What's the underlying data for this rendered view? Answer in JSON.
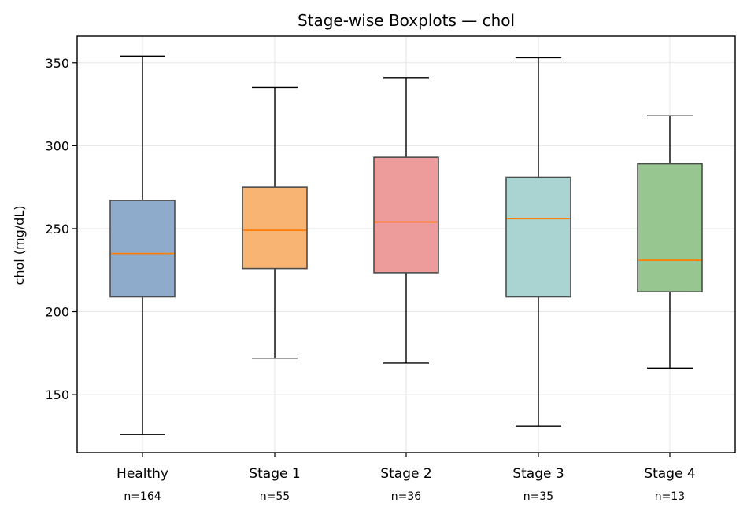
{
  "chart_data": {
    "type": "boxplot",
    "title": "Stage-wise Boxplots — chol",
    "xlabel": "",
    "ylabel": "chol (mg/dL)",
    "ylim": [
      115,
      366
    ],
    "yticks": [
      150,
      200,
      250,
      300,
      350
    ],
    "grid": true,
    "legend": "none",
    "categories": [
      "Healthy",
      "Stage 1",
      "Stage 2",
      "Stage 3",
      "Stage 4"
    ],
    "counts": [
      "n=164",
      "n=55",
      "n=36",
      "n=35",
      "n=13"
    ],
    "boxes": [
      {
        "whisker_low": 126,
        "q1": 209,
        "median": 235,
        "q3": 267,
        "whisker_high": 354,
        "color": "#8eabcb"
      },
      {
        "whisker_low": 172,
        "q1": 226,
        "median": 249,
        "q3": 275,
        "whisker_high": 335,
        "color": "#f8b473"
      },
      {
        "whisker_low": 169,
        "q1": 223.5,
        "median": 254,
        "q3": 293,
        "whisker_high": 341,
        "color": "#ee9b9b"
      },
      {
        "whisker_low": 131,
        "q1": 209,
        "median": 256,
        "q3": 281,
        "whisker_high": 353,
        "color": "#a9d4d1"
      },
      {
        "whisker_low": 166,
        "q1": 212,
        "median": 231,
        "q3": 289,
        "whisker_high": 318,
        "color": "#98c691"
      }
    ],
    "median_color": "#ff7f0e"
  }
}
